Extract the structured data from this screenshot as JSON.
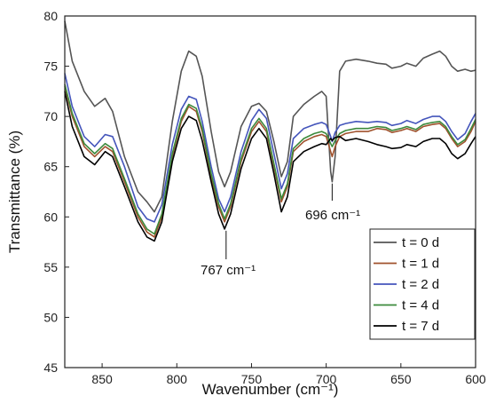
{
  "chart_data": {
    "type": "line",
    "xlabel": "Wavenumber (cm⁻¹)",
    "ylabel": "Transmittance (%)",
    "xlim": [
      875,
      600
    ],
    "ylim": [
      45,
      80
    ],
    "x_reversed": true,
    "xticks": [
      850,
      800,
      750,
      700,
      650,
      600
    ],
    "yticks": [
      45,
      50,
      55,
      60,
      65,
      70,
      75,
      80
    ],
    "grid": false,
    "legend_position": "bottom-right",
    "series": [
      {
        "name": "t = 0 d",
        "color": "#555555",
        "points": [
          [
            875,
            79.5
          ],
          [
            870,
            75.5
          ],
          [
            862,
            72.5
          ],
          [
            855,
            71.0
          ],
          [
            848,
            71.8
          ],
          [
            843,
            70.5
          ],
          [
            835,
            66.0
          ],
          [
            826,
            62.5
          ],
          [
            820,
            61.5
          ],
          [
            815,
            60.5
          ],
          [
            810,
            62.0
          ],
          [
            803,
            69.5
          ],
          [
            797,
            74.5
          ],
          [
            792,
            76.5
          ],
          [
            787,
            76.0
          ],
          [
            783,
            74.0
          ],
          [
            777,
            68.5
          ],
          [
            772,
            64.5
          ],
          [
            768,
            63.0
          ],
          [
            764,
            64.5
          ],
          [
            757,
            69.0
          ],
          [
            750,
            71.0
          ],
          [
            745,
            71.3
          ],
          [
            740,
            70.5
          ],
          [
            735,
            67.5
          ],
          [
            730,
            64.0
          ],
          [
            726,
            65.5
          ],
          [
            722,
            70.0
          ],
          [
            715,
            71.2
          ],
          [
            708,
            72.0
          ],
          [
            703,
            72.5
          ],
          [
            700,
            72.0
          ],
          [
            697,
            64.5
          ],
          [
            696,
            63.5
          ],
          [
            694,
            66.0
          ],
          [
            691,
            74.5
          ],
          [
            687,
            75.5
          ],
          [
            680,
            75.7
          ],
          [
            672,
            75.5
          ],
          [
            666,
            75.3
          ],
          [
            660,
            75.2
          ],
          [
            656,
            74.8
          ],
          [
            650,
            75.0
          ],
          [
            646,
            75.3
          ],
          [
            640,
            75.0
          ],
          [
            635,
            75.8
          ],
          [
            629,
            76.2
          ],
          [
            624,
            76.5
          ],
          [
            620,
            76.0
          ],
          [
            616,
            75.0
          ],
          [
            612,
            74.5
          ],
          [
            607,
            74.7
          ],
          [
            603,
            74.5
          ],
          [
            600,
            74.6
          ]
        ]
      },
      {
        "name": "t = 1 d",
        "color": "#a0522d",
        "points": [
          [
            875,
            73.0
          ],
          [
            870,
            70.0
          ],
          [
            862,
            67.0
          ],
          [
            855,
            66.0
          ],
          [
            848,
            67.0
          ],
          [
            843,
            66.5
          ],
          [
            835,
            63.5
          ],
          [
            826,
            60.0
          ],
          [
            820,
            58.5
          ],
          [
            815,
            58.0
          ],
          [
            810,
            60.0
          ],
          [
            803,
            66.0
          ],
          [
            797,
            69.5
          ],
          [
            792,
            71.0
          ],
          [
            787,
            70.5
          ],
          [
            783,
            68.5
          ],
          [
            777,
            64.0
          ],
          [
            772,
            61.0
          ],
          [
            768,
            59.5
          ],
          [
            764,
            61.0
          ],
          [
            757,
            65.5
          ],
          [
            750,
            68.5
          ],
          [
            745,
            69.5
          ],
          [
            740,
            68.5
          ],
          [
            735,
            65.0
          ],
          [
            730,
            61.5
          ],
          [
            726,
            63.0
          ],
          [
            722,
            66.5
          ],
          [
            715,
            67.5
          ],
          [
            708,
            68.0
          ],
          [
            703,
            68.2
          ],
          [
            700,
            68.0
          ],
          [
            697,
            66.5
          ],
          [
            696,
            66.0
          ],
          [
            694,
            67.0
          ],
          [
            691,
            68.0
          ],
          [
            687,
            68.3
          ],
          [
            680,
            68.5
          ],
          [
            672,
            68.5
          ],
          [
            666,
            68.8
          ],
          [
            660,
            68.7
          ],
          [
            656,
            68.4
          ],
          [
            650,
            68.6
          ],
          [
            646,
            68.8
          ],
          [
            640,
            68.5
          ],
          [
            635,
            69.0
          ],
          [
            629,
            69.2
          ],
          [
            624,
            69.3
          ],
          [
            620,
            68.8
          ],
          [
            616,
            67.8
          ],
          [
            612,
            67.0
          ],
          [
            607,
            67.5
          ],
          [
            603,
            68.5
          ],
          [
            600,
            69.5
          ]
        ]
      },
      {
        "name": "t = 2 d",
        "color": "#4455bb",
        "points": [
          [
            875,
            74.3
          ],
          [
            870,
            71.0
          ],
          [
            862,
            68.0
          ],
          [
            855,
            67.0
          ],
          [
            848,
            68.2
          ],
          [
            843,
            68.0
          ],
          [
            835,
            65.0
          ],
          [
            826,
            61.0
          ],
          [
            820,
            59.8
          ],
          [
            815,
            59.5
          ],
          [
            810,
            61.2
          ],
          [
            803,
            67.2
          ],
          [
            797,
            70.7
          ],
          [
            792,
            72.0
          ],
          [
            787,
            71.7
          ],
          [
            783,
            69.5
          ],
          [
            777,
            65.0
          ],
          [
            772,
            61.8
          ],
          [
            768,
            60.5
          ],
          [
            764,
            62.0
          ],
          [
            757,
            66.5
          ],
          [
            750,
            69.6
          ],
          [
            745,
            70.7
          ],
          [
            740,
            69.8
          ],
          [
            735,
            66.3
          ],
          [
            730,
            62.8
          ],
          [
            726,
            64.3
          ],
          [
            722,
            67.8
          ],
          [
            715,
            68.8
          ],
          [
            708,
            69.2
          ],
          [
            703,
            69.4
          ],
          [
            700,
            69.2
          ],
          [
            697,
            68.0
          ],
          [
            696,
            67.5
          ],
          [
            694,
            68.4
          ],
          [
            691,
            69.1
          ],
          [
            687,
            69.3
          ],
          [
            680,
            69.5
          ],
          [
            672,
            69.4
          ],
          [
            666,
            69.5
          ],
          [
            660,
            69.4
          ],
          [
            656,
            69.1
          ],
          [
            650,
            69.3
          ],
          [
            646,
            69.6
          ],
          [
            640,
            69.3
          ],
          [
            635,
            69.7
          ],
          [
            629,
            70.0
          ],
          [
            624,
            70.0
          ],
          [
            620,
            69.5
          ],
          [
            616,
            68.5
          ],
          [
            612,
            67.7
          ],
          [
            607,
            68.3
          ],
          [
            603,
            69.5
          ],
          [
            600,
            70.3
          ]
        ]
      },
      {
        "name": "t = 4 d",
        "color": "#3c8a3c",
        "points": [
          [
            875,
            73.2
          ],
          [
            870,
            70.3
          ],
          [
            862,
            67.3
          ],
          [
            855,
            66.3
          ],
          [
            848,
            67.3
          ],
          [
            843,
            66.8
          ],
          [
            835,
            63.8
          ],
          [
            826,
            60.3
          ],
          [
            820,
            58.8
          ],
          [
            815,
            58.3
          ],
          [
            810,
            60.3
          ],
          [
            803,
            66.3
          ],
          [
            797,
            69.8
          ],
          [
            792,
            71.2
          ],
          [
            787,
            70.8
          ],
          [
            783,
            68.8
          ],
          [
            777,
            64.3
          ],
          [
            772,
            61.3
          ],
          [
            768,
            59.8
          ],
          [
            764,
            61.3
          ],
          [
            757,
            65.8
          ],
          [
            750,
            68.8
          ],
          [
            745,
            69.8
          ],
          [
            740,
            68.8
          ],
          [
            735,
            65.3
          ],
          [
            730,
            61.8
          ],
          [
            726,
            63.3
          ],
          [
            722,
            66.8
          ],
          [
            715,
            67.8
          ],
          [
            708,
            68.3
          ],
          [
            703,
            68.5
          ],
          [
            700,
            68.3
          ],
          [
            697,
            67.3
          ],
          [
            696,
            67.0
          ],
          [
            694,
            67.6
          ],
          [
            691,
            68.3
          ],
          [
            687,
            68.6
          ],
          [
            680,
            68.8
          ],
          [
            672,
            68.8
          ],
          [
            666,
            69.0
          ],
          [
            660,
            68.9
          ],
          [
            656,
            68.6
          ],
          [
            650,
            68.8
          ],
          [
            646,
            69.0
          ],
          [
            640,
            68.7
          ],
          [
            635,
            69.2
          ],
          [
            629,
            69.4
          ],
          [
            624,
            69.5
          ],
          [
            620,
            69.0
          ],
          [
            616,
            68.0
          ],
          [
            612,
            67.2
          ],
          [
            607,
            67.7
          ],
          [
            603,
            68.8
          ],
          [
            600,
            69.7
          ]
        ]
      },
      {
        "name": "t  = 7 d",
        "color": "#000000",
        "points": [
          [
            875,
            72.5
          ],
          [
            870,
            69.0
          ],
          [
            862,
            66.0
          ],
          [
            855,
            65.2
          ],
          [
            848,
            66.5
          ],
          [
            843,
            66.0
          ],
          [
            835,
            63.0
          ],
          [
            826,
            59.5
          ],
          [
            820,
            58.0
          ],
          [
            815,
            57.6
          ],
          [
            810,
            59.5
          ],
          [
            803,
            65.5
          ],
          [
            797,
            68.8
          ],
          [
            792,
            70.0
          ],
          [
            787,
            69.6
          ],
          [
            783,
            67.6
          ],
          [
            777,
            63.5
          ],
          [
            772,
            60.3
          ],
          [
            768,
            58.8
          ],
          [
            764,
            60.3
          ],
          [
            757,
            64.8
          ],
          [
            750,
            67.8
          ],
          [
            745,
            68.8
          ],
          [
            740,
            67.8
          ],
          [
            735,
            64.3
          ],
          [
            730,
            60.5
          ],
          [
            726,
            62.0
          ],
          [
            722,
            65.5
          ],
          [
            715,
            66.5
          ],
          [
            708,
            67.0
          ],
          [
            703,
            67.3
          ],
          [
            700,
            67.2
          ],
          [
            697,
            67.8
          ],
          [
            696,
            67.6
          ],
          [
            694,
            67.9
          ],
          [
            691,
            68.0
          ],
          [
            687,
            67.6
          ],
          [
            680,
            67.8
          ],
          [
            672,
            67.5
          ],
          [
            666,
            67.2
          ],
          [
            660,
            67.0
          ],
          [
            656,
            66.8
          ],
          [
            650,
            66.9
          ],
          [
            646,
            67.2
          ],
          [
            640,
            67.0
          ],
          [
            635,
            67.5
          ],
          [
            629,
            67.8
          ],
          [
            624,
            67.8
          ],
          [
            620,
            67.3
          ],
          [
            616,
            66.3
          ],
          [
            612,
            65.8
          ],
          [
            607,
            66.3
          ],
          [
            603,
            67.3
          ],
          [
            600,
            68.0
          ]
        ]
      }
    ],
    "annotations": [
      {
        "text": "767 cm⁻¹",
        "x": 767,
        "y": 58.8
      },
      {
        "text": "696 cm⁻¹",
        "x": 696,
        "y": 63.5
      }
    ]
  }
}
